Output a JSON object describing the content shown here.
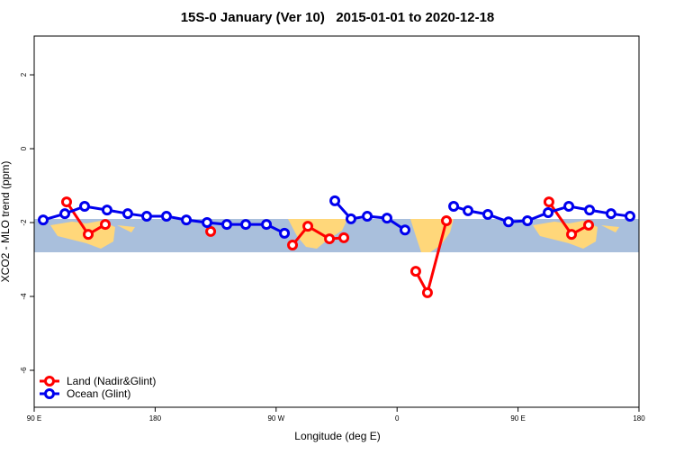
{
  "chart_data": {
    "type": "line",
    "title": "15S-0 January (Ver 10)   2015-01-01 to 2020-12-18",
    "x_label": "Longitude (deg E)",
    "y_label": "XCO2 - MLO trend (ppm)",
    "xlim": [
      90,
      540
    ],
    "ylim": [
      -7,
      3.05
    ],
    "xticks": [
      {
        "value": 90,
        "label": "90 E"
      },
      {
        "value": 180,
        "label": "180"
      },
      {
        "value": 270,
        "label": "90 W"
      },
      {
        "value": 360,
        "label": "0"
      },
      {
        "value": 450,
        "label": "90 E"
      },
      {
        "value": 540,
        "label": "180"
      }
    ],
    "yticks": [
      2,
      0,
      -2,
      -4,
      -6
    ],
    "legend": "bottom-left",
    "series": [
      {
        "name": "Land (Nadir&Glint)",
        "color": "#ff0000",
        "x": [
          114.1,
          130.2,
          142.9,
          180,
          221.3,
          250,
          282.2,
          293.6,
          309.7,
          320.4,
          350,
          373.9,
          382.6,
          396.7,
          440,
          473,
          489.8,
          502.5
        ],
        "values": [
          -1.44,
          -2.32,
          -2.05,
          null,
          -2.24,
          null,
          -2.61,
          -2.1,
          -2.44,
          -2.41,
          null,
          -3.32,
          -3.9,
          -1.95,
          null,
          -1.44,
          -2.32,
          -2.07
        ]
      },
      {
        "name": "Ocean (Glint)",
        "color": "#0000ee",
        "x": [
          96.7,
          112.8,
          127.5,
          144.2,
          159.6,
          173.7,
          188.4,
          203.2,
          218.6,
          233.3,
          247.4,
          262.8,
          276.2,
          295,
          313.7,
          325.7,
          337.8,
          352.5,
          365.9,
          385,
          402.1,
          412.8,
          427.5,
          442.9,
          457,
          472.4,
          487.8,
          503.2,
          519.2,
          533.3
        ],
        "values": [
          -1.93,
          -1.76,
          -1.56,
          -1.66,
          -1.76,
          -1.83,
          -1.83,
          -1.93,
          -2.0,
          -2.05,
          -2.05,
          -2.05,
          -2.29,
          null,
          -1.41,
          -1.9,
          -1.83,
          -1.88,
          -2.2,
          null,
          -1.56,
          -1.68,
          -1.78,
          -1.98,
          -1.95,
          -1.73,
          -1.56,
          -1.66,
          -1.76,
          -1.83
        ]
      }
    ]
  }
}
